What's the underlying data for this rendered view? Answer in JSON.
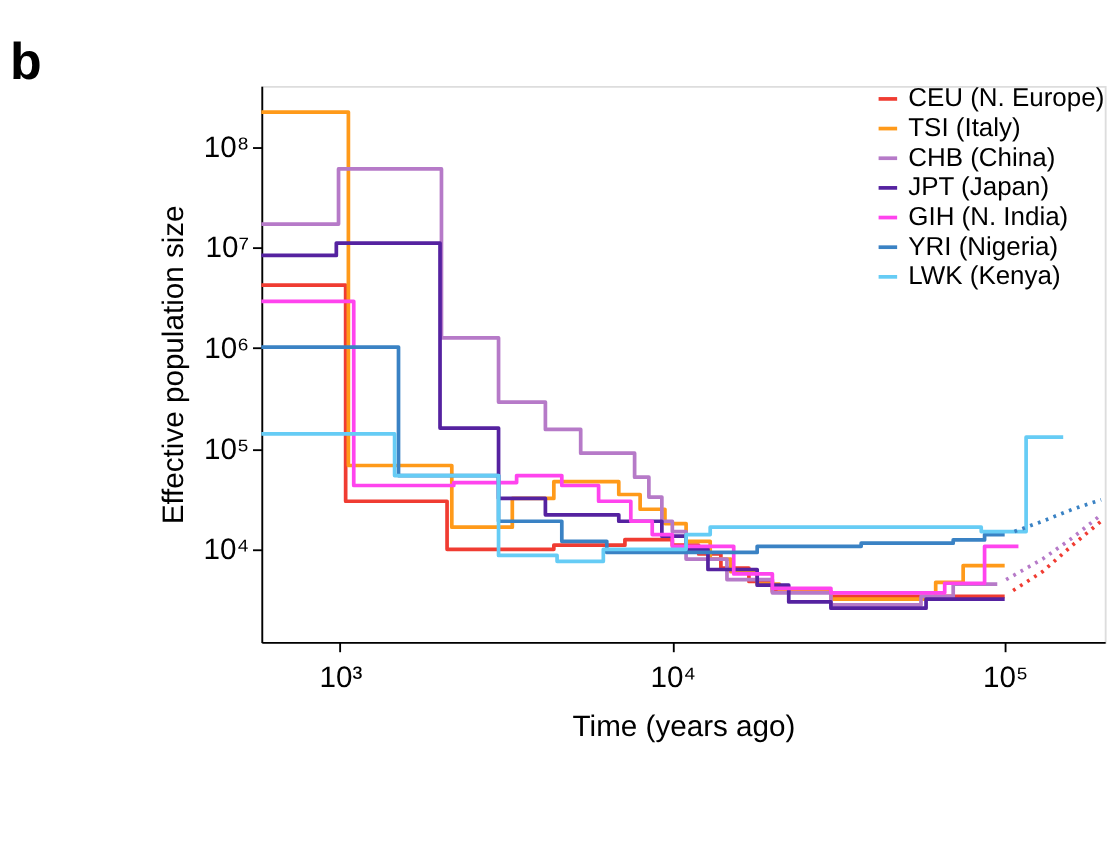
{
  "chart_data": {
    "type": "step",
    "title": "b",
    "xlabel": "Time (years ago)",
    "ylabel": "Effective population size",
    "log": "xy",
    "grid": false,
    "legend": "top right",
    "marker": "none",
    "xlim": [
      580,
      200000
    ],
    "ylim": [
      1200,
      400000000
    ],
    "xticks": [
      {
        "value": 1000,
        "label": "10³"
      },
      {
        "value": 10000,
        "label": "10⁴"
      },
      {
        "value": 100000,
        "label": "10⁵"
      }
    ],
    "yticks": [
      {
        "value": 10000,
        "label": "10⁴"
      },
      {
        "value": 100000,
        "label": "10⁵"
      },
      {
        "value": 1000000,
        "label": "10⁶"
      },
      {
        "value": 10000000,
        "label": "10⁷"
      },
      {
        "value": 100000000,
        "label": "10⁸"
      }
    ],
    "series": [
      {
        "name": "CEU (N. Europe)",
        "color": "#f03c32",
        "line_style": "solid",
        "x": [
          580,
          1040,
          2100,
          4400,
          7200,
          10000,
          12000,
          14000,
          17000,
          20000,
          30000,
          100000
        ],
        "values": [
          4200000,
          30000,
          10000,
          11000,
          12500,
          11000,
          9000,
          6500,
          4800,
          3800,
          3400,
          3400
        ]
      },
      {
        "name": "TSI (Italy)",
        "color": "#ff9a1a",
        "line_style": "solid",
        "x": [
          580,
          1060,
          2170,
          3300,
          4400,
          6900,
          8000,
          9500,
          11000,
          13000,
          15000,
          18000,
          21000,
          30000,
          62000,
          75000,
          100000
        ],
        "values": [
          220000000,
          68000,
          16600,
          32000,
          47000,
          35000,
          25000,
          18000,
          12000,
          8000,
          6000,
          4500,
          3800,
          3200,
          4700,
          6900,
          6900
        ]
      },
      {
        "name": "CHB (China)",
        "color": "#b67ac8",
        "line_style": "solid",
        "x": [
          580,
          990,
          2020,
          3000,
          4150,
          5300,
          7700,
          8500,
          9300,
          10000,
          11000,
          14600,
          20000,
          30000,
          56000,
          70000,
          95000
        ],
        "values": [
          17000000,
          60000000,
          1260000,
          290000,
          155000,
          90000,
          52000,
          33000,
          19000,
          15000,
          8000,
          5000,
          3700,
          2800,
          3400,
          4500,
          4500
        ]
      },
      {
        "name": "JPT (Japan)",
        "color": "#5522a0",
        "line_style": "solid",
        "x": [
          580,
          975,
          2000,
          3000,
          4150,
          6900,
          9300,
          11000,
          12800,
          18000,
          22400,
          30000,
          58000,
          100000
        ],
        "values": [
          8300000,
          11000000,
          160000,
          32000,
          22000,
          19000,
          13500,
          10000,
          6300,
          4400,
          3000,
          2600,
          3200,
          3200
        ]
      },
      {
        "name": "GIH (N. India)",
        "color": "#ff44ee",
        "line_style": "solid",
        "x": [
          580,
          1100,
          2200,
          3400,
          4650,
          6000,
          7500,
          8700,
          10000,
          15300,
          20000,
          30000,
          66000,
          87000,
          110000
        ],
        "values": [
          2900000,
          43000,
          46000,
          54000,
          43000,
          30000,
          19000,
          14000,
          10700,
          5700,
          4100,
          3700,
          4600,
          10700,
          10700
        ]
      },
      {
        "name": "YRI (Nigeria)",
        "color": "#3a82c4",
        "line_style": "solid",
        "x": [
          580,
          1500,
          3000,
          4650,
          6350,
          18000,
          37000,
          70000,
          87000,
          100000
        ],
        "values": [
          1020000,
          54000,
          19000,
          12000,
          9300,
          10700,
          11500,
          12400,
          14000,
          14000
        ]
      },
      {
        "name": "LWK (Kenya)",
        "color": "#66ccf5",
        "line_style": "solid",
        "x": [
          580,
          1460,
          3000,
          4500,
          6200,
          11000,
          13000,
          30000,
          85000,
          116000,
          150000
        ],
        "values": [
          140000,
          54000,
          8700,
          7600,
          10000,
          14000,
          16600,
          16600,
          15000,
          130000,
          130000
        ]
      },
      {
        "color": "#f03c32",
        "type": "line",
        "line_style": "dotted",
        "x": [
          106000,
          130000,
          160000,
          195000
        ],
        "values": [
          3900,
          6000,
          11000,
          19000
        ]
      },
      {
        "color": "#b67ac8",
        "type": "line",
        "line_style": "dotted",
        "x": [
          101000,
          130000,
          160000,
          195000
        ],
        "values": [
          5000,
          8000,
          13000,
          22000
        ]
      },
      {
        "color": "#3a82c4",
        "type": "line",
        "line_style": "dotted",
        "x": [
          107000,
          130000,
          160000,
          195000
        ],
        "values": [
          15000,
          19000,
          25000,
          31000
        ]
      }
    ]
  }
}
